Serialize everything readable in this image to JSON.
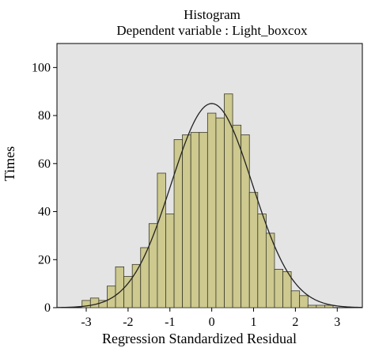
{
  "chart_data": {
    "type": "bar",
    "title": "Histogram",
    "subtitle": "Dependent variable : Light_boxcox",
    "xlabel": "Regression Standardized Residual",
    "ylabel": "Times",
    "xlim": [
      -3.7,
      3.6
    ],
    "ylim": [
      0,
      110
    ],
    "xticks": [
      -3,
      -2,
      -1,
      0,
      1,
      2,
      3
    ],
    "yticks": [
      0,
      20,
      40,
      60,
      80,
      100
    ],
    "bin_width": 0.2,
    "bins_start": [
      -3.1,
      -2.9,
      -2.7,
      -2.5,
      -2.3,
      -2.1,
      -1.9,
      -1.7,
      -1.5,
      -1.3,
      -1.1,
      -0.9,
      -0.7,
      -0.5,
      -0.3,
      -0.1,
      0.1,
      0.3,
      0.5,
      0.7,
      0.9,
      1.1,
      1.3,
      1.5,
      1.7,
      1.9,
      2.1,
      2.3,
      2.5,
      2.7,
      2.9
    ],
    "values": [
      3,
      4,
      3,
      9,
      17,
      13,
      18,
      25,
      35,
      56,
      39,
      70,
      72,
      73,
      73,
      81,
      79,
      89,
      76,
      72,
      48,
      39,
      31,
      16,
      15,
      7,
      5,
      1,
      1,
      1,
      0
    ],
    "normal_curve": {
      "mean": 0,
      "sd": 0.97,
      "peak": 85
    },
    "colors": {
      "bar_fill": "#cdc98f",
      "bar_stroke": "#3a3a2a",
      "plot_background": "#e4e4e4",
      "curve": "#222222"
    },
    "grid": false,
    "legend": "none"
  }
}
